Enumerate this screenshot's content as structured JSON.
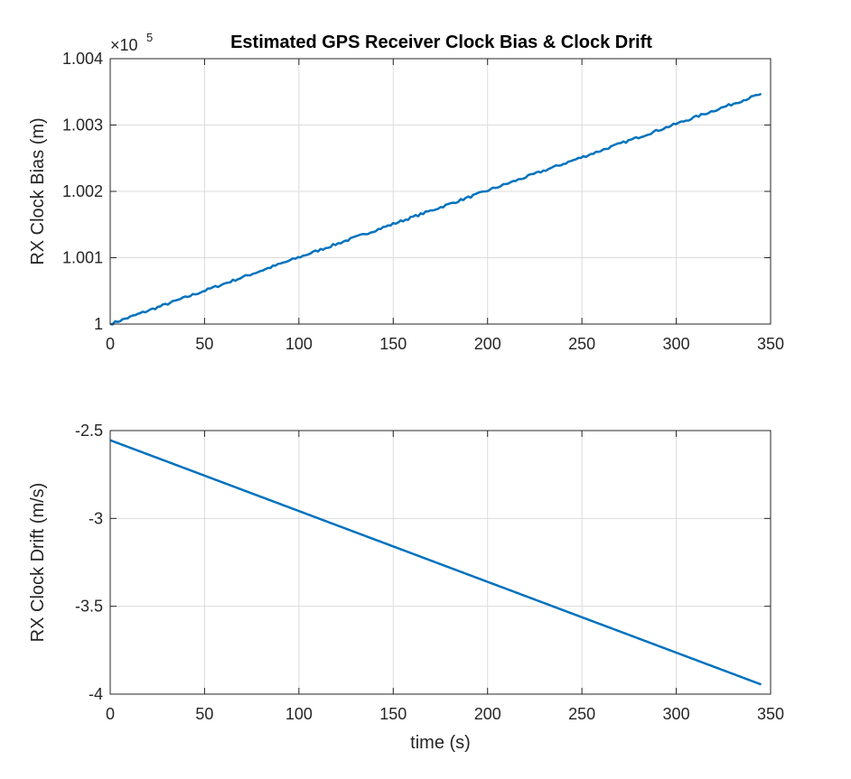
{
  "chart_data": [
    {
      "type": "line",
      "title": "Estimated GPS Receiver Clock Bias & Clock Drift",
      "xlabel": "",
      "ylabel": "RX Clock Bias (m)",
      "exponent_base": "×10",
      "exponent_power": "5",
      "xlim": [
        0,
        350
      ],
      "ylim": [
        1,
        1.004
      ],
      "x_ticks": [
        "0",
        "50",
        "100",
        "150",
        "200",
        "250",
        "300",
        "350"
      ],
      "y_ticks": [
        "1",
        "1.001",
        "1.002",
        "1.003",
        "1.004"
      ],
      "grid": true,
      "series": [
        {
          "color": "#0072BD",
          "x": [
            0,
            345
          ],
          "y": [
            1.0,
            1.00347
          ]
        }
      ]
    },
    {
      "type": "line",
      "title": "",
      "xlabel": "time (s)",
      "ylabel": "RX Clock Drift (m/s)",
      "xlim": [
        0,
        350
      ],
      "ylim": [
        -4,
        -2.5
      ],
      "x_ticks": [
        "0",
        "50",
        "100",
        "150",
        "200",
        "250",
        "300",
        "350"
      ],
      "y_ticks": [
        "-2.5",
        "-3",
        "-3.5",
        "-4"
      ],
      "grid": true,
      "series": [
        {
          "color": "#0072BD",
          "x": [
            0,
            345
          ],
          "y": [
            -2.555,
            -3.945
          ]
        }
      ]
    }
  ]
}
